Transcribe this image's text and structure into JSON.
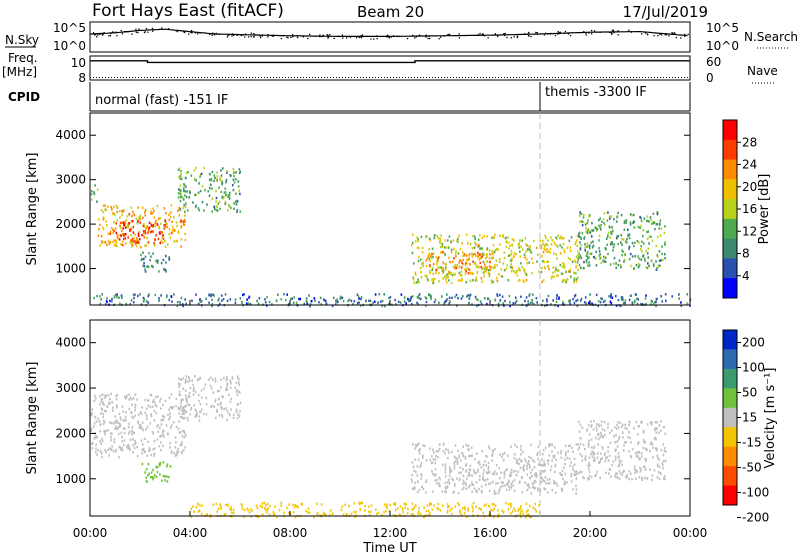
{
  "header": {
    "station": "Fort Hays East (fitACF)",
    "beam": "Beam 20",
    "date": "17/Jul/2019"
  },
  "colors": {
    "power_scale": [
      "#0000ff",
      "#2a50b0",
      "#3c8a6e",
      "#4cab4f",
      "#b8d21a",
      "#f0c000",
      "#ff8a00",
      "#ff3c00",
      "#ff0000"
    ],
    "velocity_scale": [
      "#0028c8",
      "#2f6ab0",
      "#3b9a6e",
      "#6fc23c",
      "#bfbfbf",
      "#f5c400",
      "#ff8c00",
      "#ff4b00",
      "#ff0000"
    ]
  },
  "panels": {
    "noise": {
      "left_label": "N.Sky",
      "right_label": "N.Search",
      "left_ticks": [
        "10^5",
        "10^0"
      ],
      "right_ticks": [
        "10^5",
        "10^0"
      ]
    },
    "freq": {
      "left_label_1": "Freq.",
      "left_label_2": "[MHz]",
      "right_label": "Nave",
      "left_ticks": [
        "10",
        "8"
      ],
      "right_ticks": [
        "60",
        "0"
      ]
    },
    "cpid": {
      "label": "CPID",
      "segment_1": "normal (fast) -151 IF",
      "segment_2": "themis -3300 IF"
    }
  },
  "axes": {
    "x_label": "Time UT",
    "x_ticks": [
      "00:00",
      "04:00",
      "08:00",
      "12:00",
      "16:00",
      "20:00",
      "00:00"
    ],
    "y_label_power": "Slant Range [km]",
    "y_label_velocity": "Slant Range [km]",
    "y_ticks": [
      "1000",
      "2000",
      "3000",
      "4000"
    ]
  },
  "colorbars": {
    "power": {
      "label": "Power [dB]",
      "ticks": [
        "4",
        "8",
        "12",
        "16",
        "20",
        "24",
        "28"
      ]
    },
    "velocity": {
      "label": "Velocity [m s⁻¹]",
      "ticks": [
        "200",
        "100",
        "50",
        "15",
        "-15",
        "-50",
        "-100",
        "-200"
      ]
    }
  },
  "chart_data": [
    {
      "type": "line",
      "title": "Fort Hays East (fitACF)",
      "panel": "noise",
      "series": [
        {
          "name": "N.Sky",
          "x_hours": [
            0,
            1,
            2,
            3,
            4,
            5,
            6,
            8,
            10,
            12,
            14,
            16,
            18,
            20,
            22,
            24
          ],
          "values": [
            3.0,
            3.2,
            3.6,
            3.8,
            3.4,
            3.0,
            2.9,
            2.7,
            2.6,
            2.6,
            2.7,
            2.8,
            3.0,
            3.3,
            3.4,
            2.7
          ]
        }
      ],
      "ylim_log10": [
        0,
        5
      ]
    },
    {
      "type": "line",
      "panel": "freq",
      "series": [
        {
          "name": "Freq. [MHz]",
          "x_hours": [
            0,
            2.3,
            2.3,
            13.0,
            13.0,
            24
          ],
          "values": [
            10.4,
            10.4,
            10.2,
            10.2,
            10.4,
            10.4
          ]
        }
      ],
      "ylim": [
        8,
        11
      ]
    },
    {
      "type": "table",
      "panel": "cpid",
      "segments": [
        {
          "start_hour": 0,
          "end_hour": 18.0,
          "label": "normal (fast) -151 IF"
        },
        {
          "start_hour": 18.0,
          "end_hour": 24,
          "label": "themis -3300 IF"
        }
      ]
    },
    {
      "type": "heatmap",
      "panel": "power",
      "xlabel": "Time UT",
      "ylabel": "Slant Range [km]",
      "xlim_hours": [
        0,
        24
      ],
      "ylim_km": [
        180,
        4500
      ],
      "value_label": "Power [dB]",
      "value_range": [
        0,
        30
      ],
      "scatter_regions": [
        {
          "t0": 0.0,
          "t1": 0.3,
          "r0": 2500,
          "r1": 2900,
          "value": 12
        },
        {
          "t0": 0.3,
          "t1": 3.8,
          "r0": 1500,
          "r1": 2450,
          "value": 20
        },
        {
          "t0": 1.0,
          "t1": 3.0,
          "r0": 1600,
          "r1": 2100,
          "value": 28
        },
        {
          "t0": 3.5,
          "t1": 6.0,
          "r0": 2300,
          "r1": 3300,
          "value": 10
        },
        {
          "t0": 2.0,
          "t1": 3.2,
          "r0": 950,
          "r1": 1400,
          "value": 8
        },
        {
          "t0": 12.8,
          "t1": 19.5,
          "r0": 700,
          "r1": 1800,
          "value": 16
        },
        {
          "t0": 13.5,
          "t1": 16.0,
          "r0": 900,
          "r1": 1400,
          "value": 22
        },
        {
          "t0": 19.5,
          "t1": 23.0,
          "r0": 1000,
          "r1": 2300,
          "value": 10
        },
        {
          "t0": 0.0,
          "t1": 24.0,
          "r0": 180,
          "r1": 450,
          "value": 6
        }
      ]
    },
    {
      "type": "heatmap",
      "panel": "velocity",
      "xlabel": "Time UT",
      "ylabel": "Slant Range [km]",
      "xlim_hours": [
        0,
        24
      ],
      "ylim_km": [
        180,
        4500
      ],
      "value_label": "Velocity [m s⁻¹]",
      "value_range": [
        -200,
        200
      ],
      "scatter_regions": [
        {
          "t0": 0.0,
          "t1": 3.8,
          "r0": 1500,
          "r1": 2900,
          "value": 0
        },
        {
          "t0": 3.5,
          "t1": 6.0,
          "r0": 2300,
          "r1": 3300,
          "value": 0
        },
        {
          "t0": 2.0,
          "t1": 3.2,
          "r0": 950,
          "r1": 1400,
          "value": 60
        },
        {
          "t0": 12.8,
          "t1": 19.5,
          "r0": 700,
          "r1": 1800,
          "value": 0
        },
        {
          "t0": 19.5,
          "t1": 23.0,
          "r0": 1000,
          "r1": 2300,
          "value": 0
        },
        {
          "t0": 4.0,
          "t1": 18.0,
          "r0": 180,
          "r1": 500,
          "value": -60
        }
      ]
    }
  ]
}
